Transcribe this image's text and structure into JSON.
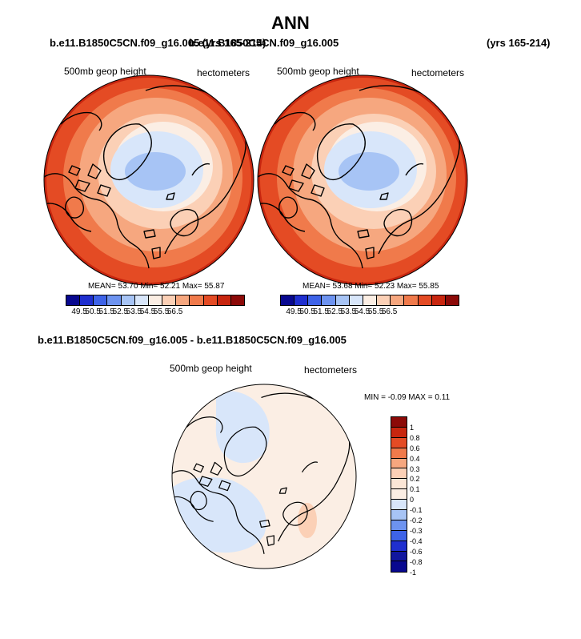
{
  "title": "ANN",
  "panel_left": {
    "case": "b.e11.B1850C5CN.f09_g16.005 (yrs 165-214)",
    "variable": "500mb geop height",
    "units": "hectometers",
    "stats": "MEAN=  53.70  Min=  52.21  Max=  55.87",
    "mean": 53.7,
    "min": 52.21,
    "max": 55.87
  },
  "panel_right": {
    "case": "b.e11.B1850C5CN.f09_g16.005",
    "years": "(yrs 165-214)",
    "variable": "500mb geop height",
    "units": "hectometers",
    "stats": "MEAN=  53.68  Min=  52.23  Max=  55.85",
    "mean": 53.68,
    "min": 52.23,
    "max": 55.85
  },
  "colorbar_abs": {
    "levels": [
      "49.5",
      "50.5",
      "51.5",
      "52.5",
      "53.5",
      "54.5",
      "55.5",
      "56.5"
    ],
    "colors": [
      "#08088f",
      "#1f2fcf",
      "#3e63e8",
      "#6d93f0",
      "#a7c4f5",
      "#d8e6fa",
      "#fbeee4",
      "#fbd0b6",
      "#f6a77f",
      "#f07a4b",
      "#e44b24",
      "#c8260f",
      "#8c0a08"
    ]
  },
  "diff_panel": {
    "case": "b.e11.B1850C5CN.f09_g16.005 - b.e11.B1850C5CN.f09_g16.005",
    "variable": "500mb geop height",
    "units": "hectometers",
    "minmax": "MIN =  -0.09 MAX =   0.11",
    "min": -0.09,
    "max": 0.11
  },
  "colorbar_diff": {
    "levels": [
      "1",
      "0.8",
      "0.6",
      "0.4",
      "0.3",
      "0.2",
      "0.1",
      "0",
      "-0.1",
      "-0.2",
      "-0.3",
      "-0.4",
      "-0.6",
      "-0.8",
      "-1"
    ],
    "colors": [
      "#8c0a08",
      "#c8260f",
      "#e44b24",
      "#f07a4b",
      "#f6a77f",
      "#fbd0b6",
      "#fbe6d6",
      "#fbeee4",
      "#d8e6fa",
      "#a7c4f5",
      "#6d93f0",
      "#3e63e8",
      "#1f2fcf",
      "#11169e",
      "#08088f"
    ]
  }
}
